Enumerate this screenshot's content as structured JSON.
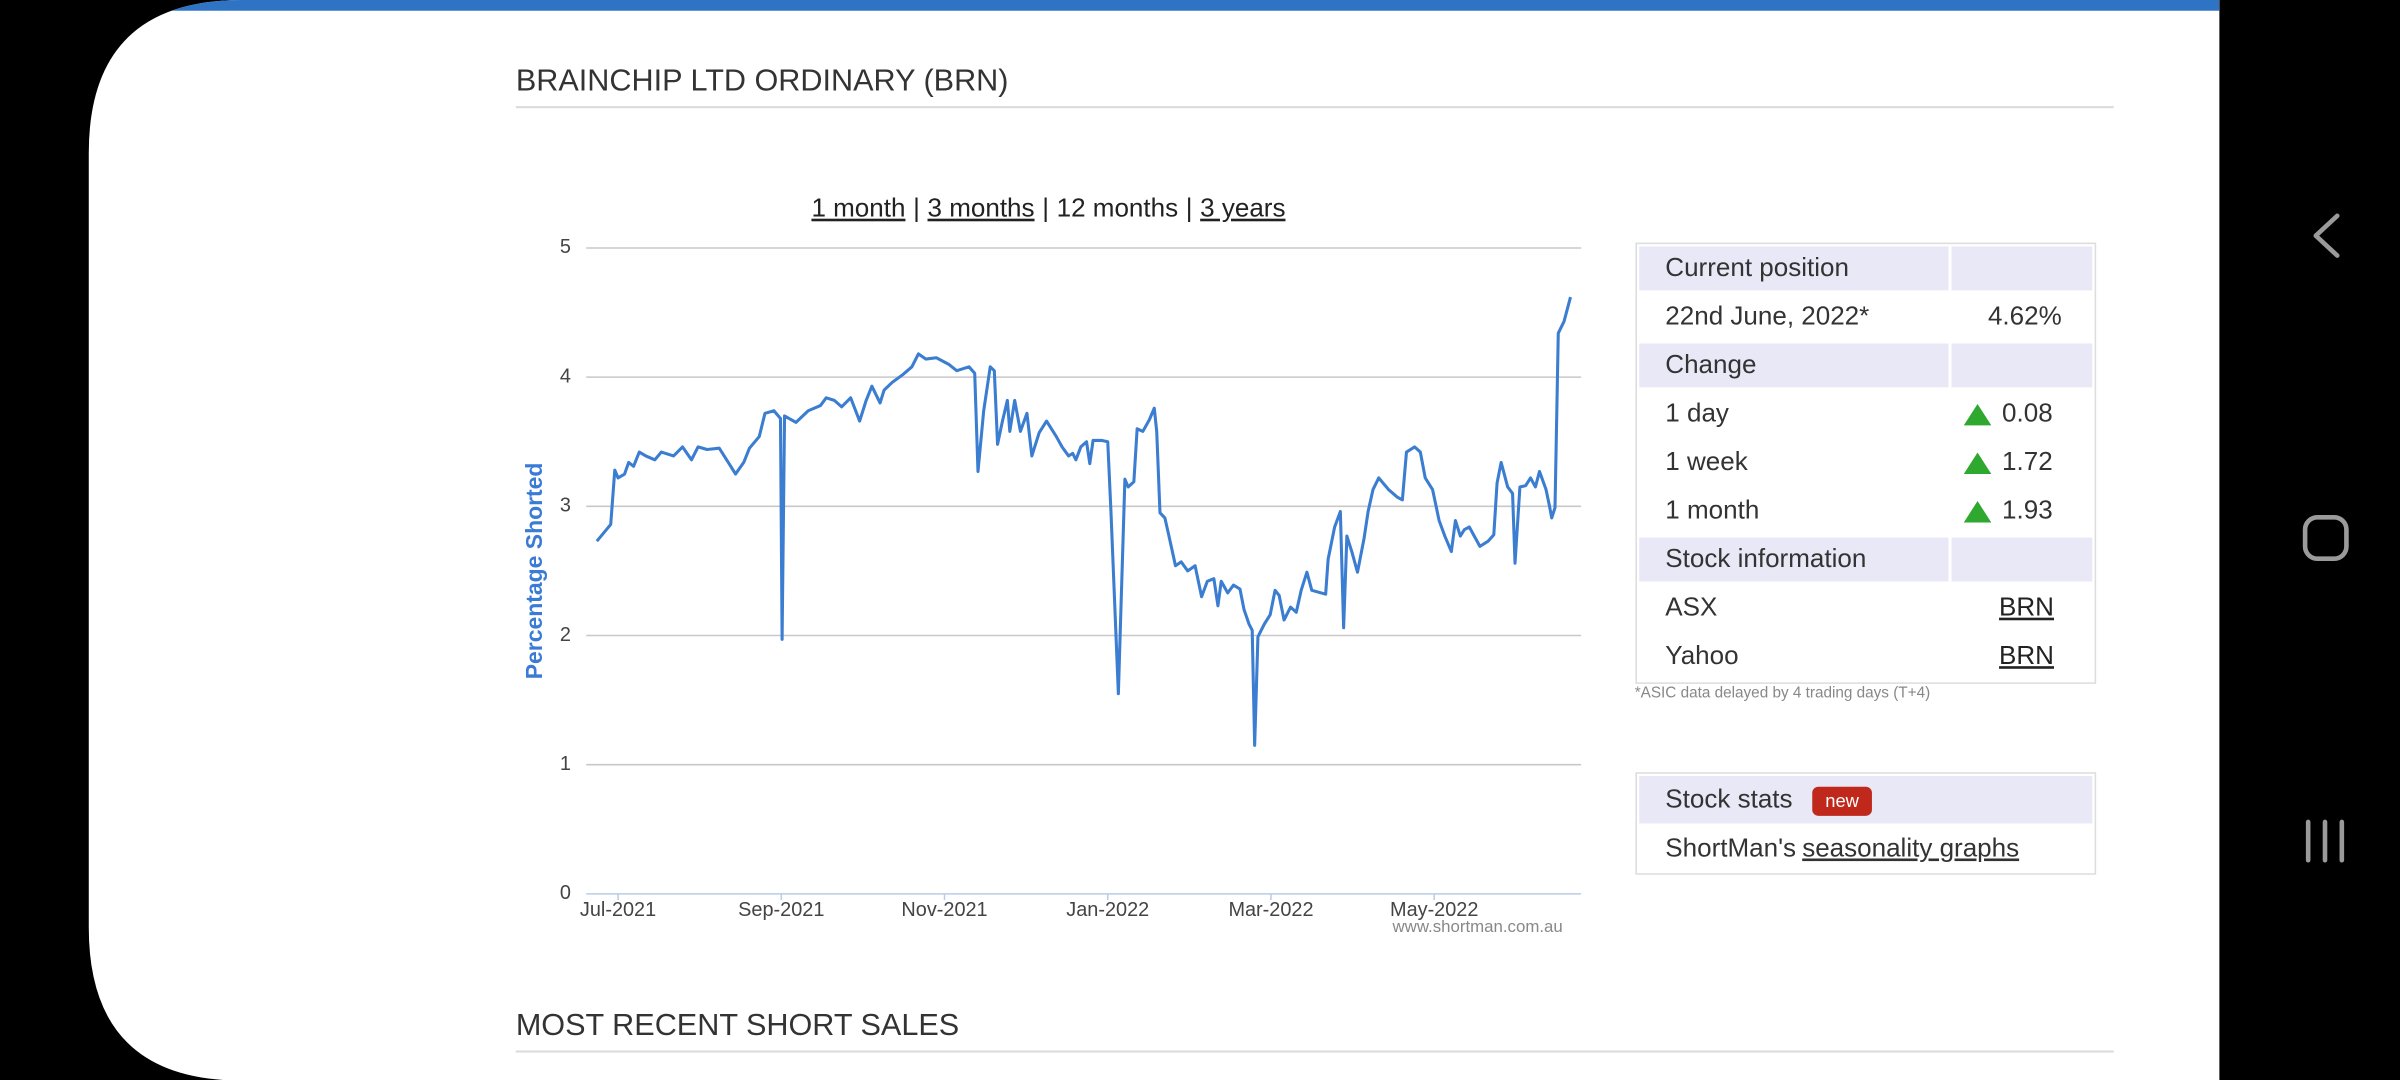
{
  "header": {
    "title": "BRAINCHIP LTD ORDINARY (BRN)"
  },
  "range_links": {
    "options": [
      "1 month",
      "3 months",
      "12 months",
      "3 years"
    ],
    "separator": "|"
  },
  "chart_data": {
    "type": "line",
    "y_label": "Percentage Shorted",
    "watermark": "www.shortman.com.au",
    "color": "#3b7dd0",
    "grid": true,
    "xlim": [
      -0.39,
      11.8
    ],
    "xticks": [
      {
        "value": 0,
        "label": "Jul-2021"
      },
      {
        "value": 2,
        "label": "Sep-2021"
      },
      {
        "value": 4,
        "label": "Nov-2021"
      },
      {
        "value": 6,
        "label": "Jan-2022"
      },
      {
        "value": 8,
        "label": "Mar-2022"
      },
      {
        "value": 10,
        "label": "May-2022"
      }
    ],
    "ylim": [
      0,
      5
    ],
    "yticks": [
      0,
      1,
      2,
      3,
      4,
      5
    ],
    "x": [
      -0.26,
      -0.09,
      -0.04,
      0,
      0.08,
      0.13,
      0.19,
      0.26,
      0.34,
      0.45,
      0.53,
      0.68,
      0.79,
      0.9,
      0.98,
      1.09,
      1.24,
      1.37,
      1.44,
      1.54,
      1.61,
      1.73,
      1.8,
      1.91,
      1.99,
      2.01,
      2.04,
      2.18,
      2.33,
      2.48,
      2.55,
      2.65,
      2.74,
      2.85,
      2.96,
      3.04,
      3.11,
      3.21,
      3.26,
      3.36,
      3.49,
      3.6,
      3.68,
      3.77,
      3.9,
      4.05,
      4.15,
      4.3,
      4.37,
      4.41,
      4.48,
      4.56,
      4.61,
      4.65,
      4.71,
      4.77,
      4.8,
      4.86,
      4.93,
      5.01,
      5.07,
      5.16,
      5.25,
      5.37,
      5.44,
      5.52,
      5.57,
      5.61,
      5.67,
      5.74,
      5.78,
      5.82,
      5.93,
      6.0,
      6.04,
      6.13,
      6.21,
      6.25,
      6.32,
      6.36,
      6.43,
      6.51,
      6.57,
      6.6,
      6.64,
      6.7,
      6.75,
      6.83,
      6.9,
      6.98,
      7.07,
      7.15,
      7.22,
      7.3,
      7.35,
      7.39,
      7.47,
      7.54,
      7.62,
      7.67,
      7.73,
      7.77,
      7.8,
      7.84,
      7.92,
      7.99,
      8.05,
      8.1,
      8.16,
      8.24,
      8.31,
      8.37,
      8.44,
      8.5,
      8.67,
      8.7,
      8.78,
      8.85,
      8.89,
      8.93,
      8.99,
      9.06,
      9.14,
      9.19,
      9.25,
      9.32,
      9.44,
      9.55,
      9.61,
      9.66,
      9.76,
      9.83,
      9.89,
      9.98,
      10.06,
      10.13,
      10.21,
      10.26,
      10.32,
      10.37,
      10.43,
      10.49,
      10.56,
      10.66,
      10.73,
      10.77,
      10.82,
      10.9,
      10.96,
      10.99,
      11.05,
      11.12,
      11.18,
      11.24,
      11.29,
      11.37,
      11.41,
      11.44,
      11.48,
      11.52,
      11.59,
      11.67
    ],
    "values": [
      2.73,
      2.86,
      3.28,
      3.22,
      3.25,
      3.34,
      3.31,
      3.42,
      3.39,
      3.36,
      3.42,
      3.39,
      3.46,
      3.36,
      3.46,
      3.44,
      3.45,
      3.32,
      3.25,
      3.34,
      3.45,
      3.54,
      3.72,
      3.74,
      3.68,
      1.97,
      3.7,
      3.65,
      3.74,
      3.78,
      3.84,
      3.82,
      3.77,
      3.84,
      3.66,
      3.82,
      3.93,
      3.8,
      3.9,
      3.96,
      4.02,
      4.08,
      4.18,
      4.14,
      4.15,
      4.1,
      4.05,
      4.08,
      4.03,
      3.27,
      3.74,
      4.08,
      4.05,
      3.48,
      3.66,
      3.82,
      3.58,
      3.82,
      3.58,
      3.72,
      3.39,
      3.57,
      3.66,
      3.54,
      3.46,
      3.39,
      3.41,
      3.36,
      3.46,
      3.5,
      3.33,
      3.51,
      3.51,
      3.5,
      2.95,
      1.55,
      3.21,
      3.15,
      3.19,
      3.6,
      3.58,
      3.67,
      3.76,
      3.58,
      2.95,
      2.91,
      2.77,
      2.54,
      2.57,
      2.5,
      2.54,
      2.3,
      2.42,
      2.44,
      2.23,
      2.42,
      2.33,
      2.39,
      2.36,
      2.2,
      2.09,
      2.04,
      1.15,
      1.99,
      2.09,
      2.16,
      2.35,
      2.31,
      2.12,
      2.22,
      2.18,
      2.35,
      2.49,
      2.35,
      2.32,
      2.59,
      2.84,
      2.96,
      2.06,
      2.77,
      2.65,
      2.49,
      2.75,
      2.96,
      3.13,
      3.22,
      3.13,
      3.07,
      3.05,
      3.42,
      3.46,
      3.42,
      3.22,
      3.13,
      2.89,
      2.77,
      2.65,
      2.89,
      2.77,
      2.82,
      2.84,
      2.77,
      2.69,
      2.73,
      2.78,
      3.18,
      3.34,
      3.15,
      3.1,
      2.56,
      3.15,
      3.16,
      3.22,
      3.15,
      3.27,
      3.13,
      3.01,
      2.91,
      2.99,
      4.34,
      4.43,
      4.62
    ]
  },
  "position_table": {
    "sections": [
      {
        "heading": "Current position",
        "rows": [
          [
            "22nd June, 2022*",
            "4.62%"
          ]
        ]
      },
      {
        "heading": "Change",
        "rows": [
          [
            "1 day",
            "0.08"
          ],
          [
            "1 week",
            "1.72"
          ],
          [
            "1 month",
            "1.93"
          ]
        ]
      },
      {
        "heading": "Stock information",
        "rows": [
          [
            "ASX",
            "BRN"
          ],
          [
            "Yahoo",
            "BRN"
          ]
        ]
      }
    ],
    "footnote": "*ASIC data delayed by 4 trading days (T+4)"
  },
  "stock_stats": {
    "heading": "Stock stats",
    "badge": "new",
    "text": "ShortMan's",
    "link": "seasonality graphs"
  },
  "next_section": {
    "title": "MOST RECENT SHORT SALES"
  }
}
